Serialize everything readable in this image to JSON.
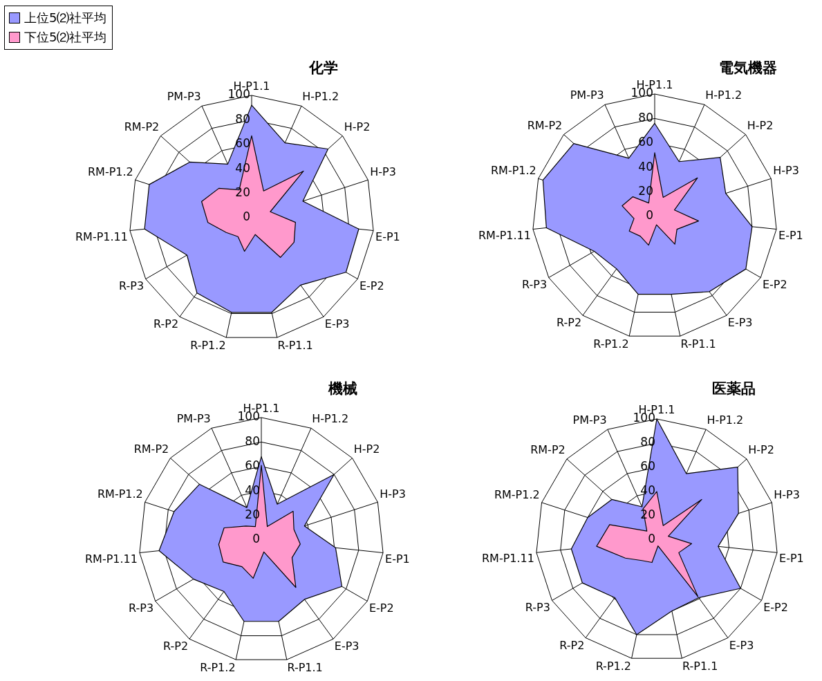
{
  "chart_data": [
    {
      "type": "radar",
      "title": "化学",
      "categories": [
        "H-P1.1",
        "H-P1.2",
        "H-P2",
        "H-P3",
        "E-P1",
        "E-P2",
        "E-P3",
        "R-P1.1",
        "R-P1.2",
        "R-P2",
        "R-P3",
        "RM-P1.11",
        "RM-P1.2",
        "RM-P2",
        "PM-P3"
      ],
      "ylim": [
        0,
        100
      ],
      "yticks": [
        0,
        20,
        40,
        60,
        80,
        100
      ],
      "grid": true,
      "legend": "top left",
      "marker": "none",
      "series": [
        {
          "name": "上位5⑵社平均",
          "color": "#9999ff",
          "values": [
            92,
            67,
            84,
            44,
            88,
            89,
            68,
            79,
            79,
            76,
            61,
            88,
            88,
            68,
            48
          ]
        },
        {
          "name": "下位5⑵社平均",
          "color": "#ff99cc",
          "values": [
            67,
            24,
            57,
            16,
            36,
            40,
            40,
            14,
            28,
            19,
            24,
            36,
            43,
            36,
            25
          ]
        }
      ]
    },
    {
      "type": "radar",
      "title": "電気機器",
      "categories": [
        "H-P1.1",
        "H-P1.2",
        "H-P2",
        "H-P3",
        "E-P1",
        "E-P2",
        "E-P3",
        "R-P1.1",
        "R-P1.2",
        "R-P2",
        "R-P3",
        "RM-P1.11",
        "RM-P1.2",
        "RM-P2",
        "PM-P3"
      ],
      "ylim": [
        0,
        100
      ],
      "yticks": [
        0,
        20,
        40,
        60,
        80,
        100
      ],
      "grid": true,
      "marker": "none",
      "series": [
        {
          "color": "#9999ff",
          "values": [
            76,
            49,
            72,
            61,
            80,
            86,
            76,
            65,
            65,
            53,
            57,
            89,
            96,
            89,
            52
          ]
        },
        {
          "color": "#ff99cc",
          "values": [
            52,
            17,
            47,
            17,
            36,
            21,
            28,
            7,
            24,
            20,
            24,
            17,
            28,
            24,
            12
          ]
        }
      ]
    },
    {
      "type": "radar",
      "title": "機械",
      "categories": [
        "H-P1.1",
        "H-P1.2",
        "H-P2",
        "H-P3",
        "E-P1",
        "E-P2",
        "E-P3",
        "R-P1.1",
        "R-P1.2",
        "R-P2",
        "R-P3",
        "RM-P1.11",
        "RM-P1.2",
        "RM-P2",
        "PM-P3"
      ],
      "ylim": [
        0,
        100
      ],
      "yticks": [
        0,
        20,
        40,
        60,
        80,
        100
      ],
      "grid": true,
      "marker": "none",
      "series": [
        {
          "color": "#9999ff",
          "values": [
            68,
            32,
            80,
            37,
            61,
            76,
            60,
            68,
            68,
            52,
            64,
            84,
            75,
            68,
            29
          ]
        },
        {
          "color": "#ff99cc",
          "values": [
            61,
            12,
            35,
            28,
            32,
            29,
            48,
            10,
            32,
            27,
            36,
            35,
            32,
            17,
            12
          ]
        }
      ]
    },
    {
      "type": "radar",
      "title": "医薬品",
      "categories": [
        "H-P1.1",
        "H-P1.2",
        "H-P2",
        "H-P3",
        "E-P1",
        "E-P2",
        "E-P3",
        "R-P1.1",
        "R-P1.2",
        "R-P2",
        "R-P3",
        "RM-P1.11",
        "RM-P1.2",
        "RM-P2",
        "PM-P3"
      ],
      "ylim": [
        0,
        100
      ],
      "yticks": [
        0,
        20,
        40,
        60,
        80,
        100
      ],
      "grid": true,
      "marker": "none",
      "series": [
        {
          "color": "#9999ff",
          "values": [
            100,
            60,
            90,
            71,
            51,
            80,
            59,
            60,
            80,
            59,
            71,
            71,
            60,
            50,
            30
          ]
        },
        {
          "color": "#ff99cc",
          "values": [
            40,
            13,
            50,
            10,
            29,
            21,
            58,
            5,
            19,
            21,
            30,
            50,
            41,
            11,
            28
          ]
        }
      ]
    }
  ]
}
